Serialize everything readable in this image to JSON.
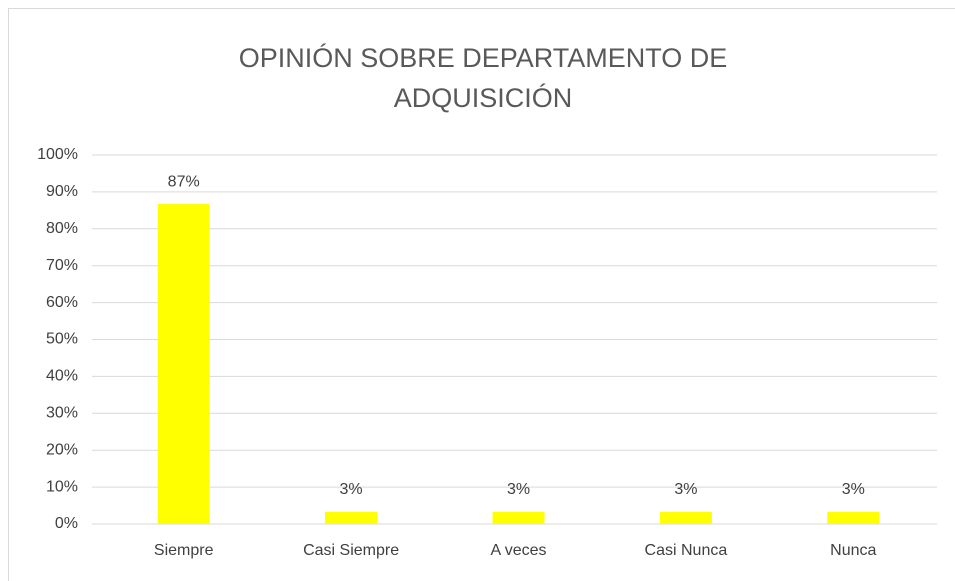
{
  "chart_data": {
    "type": "bar",
    "title": "OPINIÓN SOBRE DEPARTAMENTO DE ADQUISICIÓN",
    "categories": [
      "Siempre",
      "Casi Siempre",
      "A veces",
      "Casi Nunca",
      "Nunca"
    ],
    "values": [
      86.7,
      3.3,
      3.3,
      3.3,
      3.3
    ],
    "value_labels": [
      "87%",
      "3%",
      "3%",
      "3%",
      "3%"
    ],
    "color": "#ffff00",
    "ylim": [
      0,
      100
    ],
    "yticks": [
      {
        "value": 0,
        "label": "0%"
      },
      {
        "value": 10,
        "label": "10%"
      },
      {
        "value": 20,
        "label": "20%"
      },
      {
        "value": 30,
        "label": "30%"
      },
      {
        "value": 40,
        "label": "40%"
      },
      {
        "value": 50,
        "label": "50%"
      },
      {
        "value": 60,
        "label": "60%"
      },
      {
        "value": 70,
        "label": "70%"
      },
      {
        "value": 80,
        "label": "80%"
      },
      {
        "value": 90,
        "label": "90%"
      },
      {
        "value": 100,
        "label": "100%"
      }
    ],
    "grid": true
  }
}
